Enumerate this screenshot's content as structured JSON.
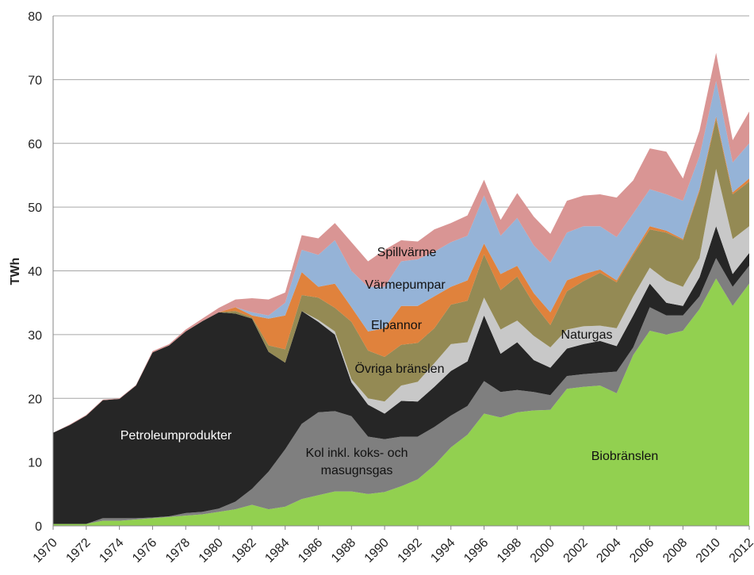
{
  "chart_data": {
    "type": "stacked_area",
    "y_label": "TWh",
    "x": [
      1970,
      1971,
      1972,
      1973,
      1974,
      1975,
      1976,
      1977,
      1978,
      1979,
      1980,
      1981,
      1982,
      1983,
      1984,
      1985,
      1986,
      1987,
      1988,
      1989,
      1990,
      1991,
      1992,
      1993,
      1994,
      1995,
      1996,
      1997,
      1998,
      1999,
      2000,
      2001,
      2002,
      2003,
      2004,
      2005,
      2006,
      2007,
      2008,
      2009,
      2010,
      2011,
      2012
    ],
    "xlim": [
      1970,
      2012
    ],
    "xticks": [
      1970,
      1972,
      1974,
      1976,
      1978,
      1980,
      1982,
      1984,
      1986,
      1988,
      1990,
      1992,
      1994,
      1996,
      1998,
      2000,
      2002,
      2004,
      2006,
      2008,
      2010,
      2012
    ],
    "ylim": [
      0,
      80
    ],
    "yticks": [
      0,
      10,
      20,
      30,
      40,
      50,
      60,
      70,
      80
    ],
    "grid": true,
    "series": [
      {
        "name": "Biobränslen",
        "color": "#92d050",
        "values": [
          0.3,
          0.3,
          0.3,
          0.8,
          0.8,
          1.0,
          1.2,
          1.4,
          1.6,
          1.8,
          2.2,
          2.6,
          3.3,
          2.6,
          3.0,
          4.2,
          4.8,
          5.4,
          5.4,
          5.0,
          5.3,
          6.2,
          7.3,
          9.5,
          12.3,
          14.3,
          17.6,
          17.0,
          17.8,
          18.1,
          18.2,
          21.5,
          21.8,
          22.0,
          20.8,
          26.8,
          30.6,
          30.0,
          30.6,
          34.0,
          38.8,
          34.5,
          38.0
        ]
      },
      {
        "name": "Kol inkl. koks- och masugnsgas",
        "color": "#7f7f7f",
        "values": [
          0,
          0,
          0,
          0.4,
          0.4,
          0.2,
          0.1,
          0.1,
          0.4,
          0.4,
          0.5,
          1.2,
          2.5,
          5.9,
          9.0,
          11.8,
          13.0,
          12.6,
          11.8,
          9.0,
          8.3,
          7.8,
          6.7,
          6.0,
          5.0,
          4.5,
          5.1,
          4.0,
          3.5,
          2.9,
          2.3,
          2.0,
          2.0,
          2.0,
          3.4,
          1.2,
          3.7,
          3.0,
          2.4,
          2.0,
          3.2,
          3.0,
          2.8
        ]
      },
      {
        "name": "Petroleumprodukter",
        "color": "#262626",
        "values": [
          14.3,
          15.5,
          17.0,
          18.5,
          18.7,
          20.8,
          25.9,
          26.8,
          28.5,
          29.9,
          30.8,
          29.5,
          26.7,
          18.8,
          13.6,
          17.7,
          14.2,
          12.0,
          5.3,
          5.0,
          4.0,
          5.6,
          5.5,
          6.3,
          7.0,
          7.0,
          10.3,
          6.0,
          7.5,
          5.0,
          4.3,
          4.3,
          4.7,
          5.0,
          4.0,
          5.0,
          3.7,
          2.0,
          1.5,
          3.0,
          5.0,
          2.0,
          2.0
        ]
      },
      {
        "name": "Naturgas",
        "color": "#c8c8c8",
        "values": [
          0,
          0,
          0,
          0,
          0,
          0,
          0,
          0,
          0,
          0,
          0,
          0,
          0,
          0,
          0,
          0,
          0.3,
          0.5,
          0.5,
          1.0,
          1.9,
          2.4,
          3.1,
          3.7,
          4.2,
          3.0,
          2.8,
          3.8,
          3.4,
          3.8,
          3.2,
          3.0,
          2.8,
          2.4,
          2.8,
          3.0,
          2.5,
          3.5,
          3.0,
          3.0,
          9.0,
          5.5,
          4.2
        ]
      },
      {
        "name": "Övriga bränslen",
        "color": "#948a54",
        "values": [
          0,
          0,
          0,
          0,
          0,
          0,
          0,
          0,
          0,
          0,
          0,
          0.4,
          0.2,
          1.0,
          2.1,
          2.5,
          3.5,
          3.7,
          9.0,
          7.5,
          7.0,
          6.4,
          6.1,
          5.5,
          6.2,
          6.5,
          6.8,
          6.2,
          6.9,
          5.0,
          3.5,
          6.0,
          7.1,
          8.3,
          7.2,
          6.5,
          6.0,
          7.5,
          7.3,
          10.5,
          7.8,
          7.0,
          7.0
        ]
      },
      {
        "name": "Elpannor",
        "color": "#e0823c",
        "values": [
          0,
          0,
          0,
          0,
          0,
          0,
          0,
          0,
          0,
          0,
          0,
          0.6,
          0.3,
          4.2,
          5.3,
          3.6,
          1.7,
          3.8,
          2.3,
          3.0,
          4.5,
          6.1,
          5.8,
          5.0,
          2.8,
          3.2,
          1.7,
          2.5,
          1.7,
          1.7,
          2.0,
          1.7,
          1.1,
          0.5,
          0.3,
          0.3,
          0.5,
          0.3,
          0.2,
          0.3,
          0.4,
          0.3,
          0.5
        ]
      },
      {
        "name": "Värmepumpar",
        "color": "#95b3d7",
        "values": [
          0,
          0,
          0,
          0,
          0,
          0,
          0,
          0,
          0,
          0,
          0,
          0,
          0.5,
          0.5,
          2.0,
          3.5,
          5.0,
          6.8,
          5.7,
          7.0,
          6.5,
          7.0,
          7.3,
          7.0,
          7.0,
          7.0,
          7.5,
          6.0,
          7.5,
          7.5,
          7.8,
          7.5,
          7.5,
          6.8,
          6.8,
          6.2,
          5.8,
          5.7,
          6.0,
          5.2,
          5.6,
          4.7,
          5.5
        ]
      },
      {
        "name": "Spillvärme",
        "color": "#d99594",
        "values": [
          0,
          0.1,
          0.1,
          0.1,
          0.1,
          0.1,
          0.2,
          0.2,
          0.3,
          0.4,
          0.7,
          1.2,
          2.2,
          2.5,
          1.6,
          2.3,
          2.6,
          2.7,
          4.5,
          4.0,
          5.8,
          3.3,
          2.8,
          3.5,
          3.0,
          3.2,
          2.5,
          2.5,
          3.9,
          4.5,
          4.5,
          5.0,
          4.8,
          5.0,
          6.2,
          5.2,
          6.4,
          6.7,
          3.5,
          4.0,
          4.4,
          3.5,
          5.0
        ]
      }
    ]
  }
}
